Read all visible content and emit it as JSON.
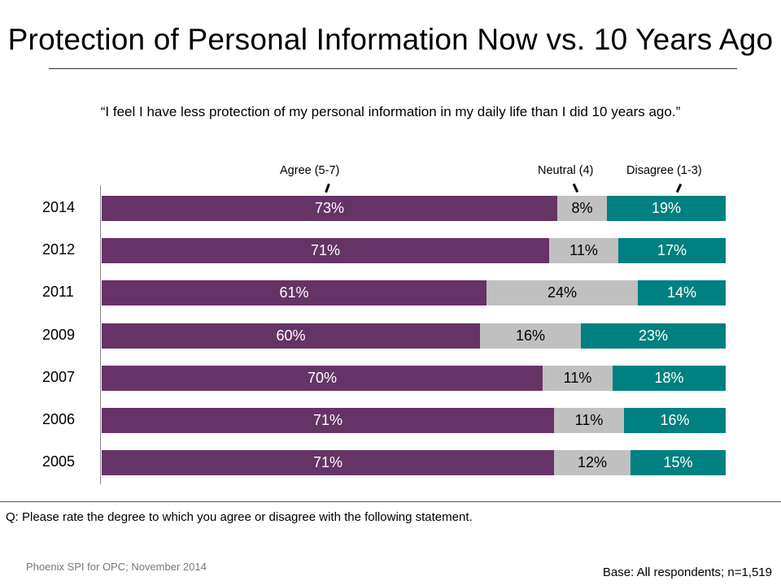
{
  "header": {
    "title": "Protection of Personal Information Now vs. 10 Years Ago",
    "subtitle": "“I feel I have less protection of my personal information in my daily life than I did 10 years ago.”"
  },
  "footer": {
    "question": "Q: Please rate the degree to which you agree or disagree with the following statement.",
    "source": "Phoenix SPI for OPC; November 2014",
    "base": "Base: All respondents; n=1,519"
  },
  "colors": {
    "agree": "#663366",
    "neutral": "#c0c0c0",
    "disagree": "#008080"
  },
  "chart_data": {
    "type": "bar",
    "orientation": "horizontal",
    "stacked": true,
    "title": "Protection of Personal Information Now vs. 10 Years Ago",
    "categories": [
      "2014",
      "2012",
      "2011",
      "2009",
      "2007",
      "2006",
      "2005"
    ],
    "series": [
      {
        "name": "Agree (5-7)",
        "values": [
          73,
          71,
          61,
          60,
          70,
          71,
          71
        ],
        "labels": [
          "73%",
          "71%",
          "61%",
          "60%",
          "70%",
          "71%",
          "71%"
        ]
      },
      {
        "name": "Neutral (4)",
        "values": [
          8,
          11,
          24,
          16,
          11,
          11,
          12
        ],
        "labels": [
          "8%",
          "11%",
          "24%",
          "16%",
          "11%",
          "11%",
          "12%"
        ]
      },
      {
        "name": "Disagree (1-3)",
        "values": [
          19,
          17,
          14,
          23,
          18,
          16,
          15
        ],
        "labels": [
          "19%",
          "17%",
          "14%",
          "23%",
          "18%",
          "16%",
          "15%"
        ]
      }
    ],
    "legend": "top",
    "xlim": [
      0,
      100
    ],
    "unit": "%"
  }
}
